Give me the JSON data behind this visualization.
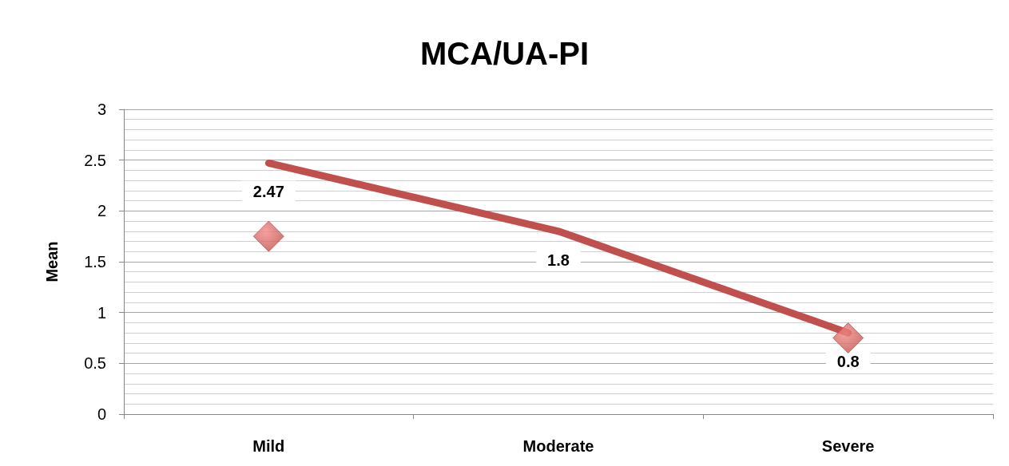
{
  "chart_data": {
    "type": "line",
    "title": "MCA/UA-PI",
    "ylabel": "Mean",
    "categories": [
      "Mild",
      "Moderate",
      "Severe"
    ],
    "series": [
      {
        "color": "#c0504d",
        "values": [
          2.47,
          1.8,
          0.8
        ],
        "value_labels": [
          "2.47",
          "1.8",
          "0.8"
        ],
        "marker": "none"
      },
      {
        "type": "scatter",
        "color": "#c0504d",
        "x": [
          "Mild",
          "Severe"
        ],
        "values": [
          1.75,
          0.75
        ],
        "marker": "diamond"
      }
    ],
    "ylim": [
      0,
      3
    ],
    "yticks": [
      0,
      0.5,
      1,
      1.5,
      2,
      2.5,
      3
    ],
    "grid": "y"
  }
}
